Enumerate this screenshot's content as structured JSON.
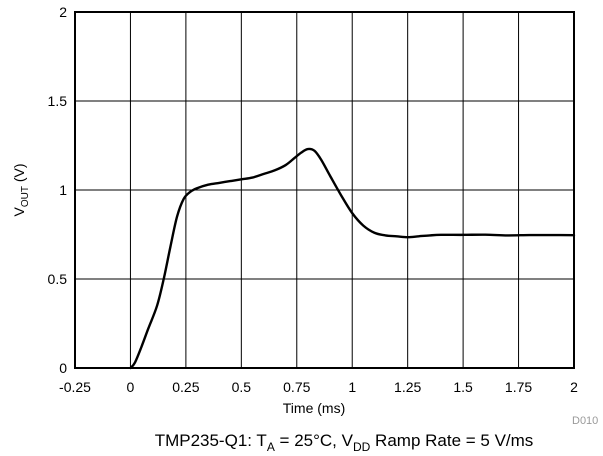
{
  "chart_data": {
    "type": "line",
    "xlabel": "Time (ms)",
    "ylabel_main": "V",
    "ylabel_sub": "OUT",
    "ylabel_unit": " (V)",
    "xlim": [
      -0.25,
      2
    ],
    "ylim": [
      0,
      2
    ],
    "x_ticks": [
      -0.25,
      0,
      0.25,
      0.5,
      0.75,
      1,
      1.25,
      1.5,
      1.75,
      2
    ],
    "x_tick_labels": [
      "-0.25",
      "0",
      "0.25",
      "0.5",
      "0.75",
      "1",
      "1.25",
      "1.5",
      "1.75",
      "2"
    ],
    "y_ticks": [
      0,
      0.5,
      1,
      1.5,
      2
    ],
    "y_tick_labels": [
      "0",
      "0.5",
      "1",
      "1.5",
      "2"
    ],
    "grid": true,
    "series": [
      {
        "color": "#000000",
        "x": [
          0,
          0.02,
          0.05,
          0.08,
          0.12,
          0.15,
          0.18,
          0.21,
          0.24,
          0.27,
          0.3,
          0.35,
          0.4,
          0.45,
          0.5,
          0.55,
          0.6,
          0.65,
          0.7,
          0.74,
          0.77,
          0.8,
          0.83,
          0.86,
          0.9,
          0.95,
          1.0,
          1.05,
          1.1,
          1.15,
          1.2,
          1.25,
          1.3,
          1.35,
          1.4,
          1.5,
          1.6,
          1.7,
          1.8,
          1.9,
          2.0
        ],
        "y": [
          0.0,
          0.03,
          0.12,
          0.22,
          0.35,
          0.5,
          0.68,
          0.85,
          0.95,
          0.99,
          1.01,
          1.03,
          1.04,
          1.05,
          1.06,
          1.07,
          1.09,
          1.11,
          1.14,
          1.18,
          1.21,
          1.23,
          1.22,
          1.17,
          1.08,
          0.97,
          0.87,
          0.8,
          0.76,
          0.745,
          0.74,
          0.735,
          0.74,
          0.745,
          0.748,
          0.748,
          0.749,
          0.745,
          0.747,
          0.747,
          0.746
        ]
      }
    ],
    "corner_label": "D010",
    "caption": {
      "part1": "TMP235-Q1: T",
      "sub1": "A",
      "part2": " = 25°C, V",
      "sub2": "DD",
      "part3": " Ramp Rate = 5 V/ms"
    }
  }
}
